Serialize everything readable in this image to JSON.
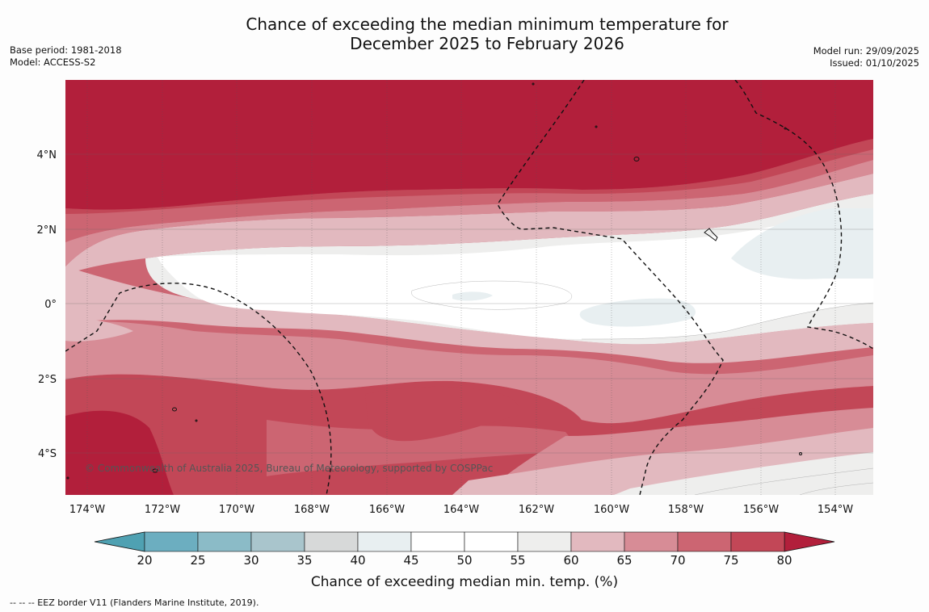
{
  "title": {
    "line1": "Chance of exceeding the median minimum temperature for",
    "line2": "December 2025 to February 2026"
  },
  "meta_left": {
    "base_period": "Base period: 1981-2018",
    "model": "Model: ACCESS-S2"
  },
  "meta_right": {
    "model_run": "Model run: 29/09/2025",
    "issued": "Issued: 01/10/2025"
  },
  "map": {
    "lat_labels": [
      "4°N",
      "2°N",
      "0°",
      "2°S",
      "4°S"
    ],
    "lon_labels": [
      "174°W",
      "172°W",
      "170°W",
      "168°W",
      "166°W",
      "164°W",
      "162°W",
      "160°W",
      "158°W",
      "156°W",
      "154°W"
    ],
    "copyright": "© Commonwealth of Australia 2025, Bureau of Meteorology, supported by COSPPac",
    "colors": {
      "c80": "#b21f3b",
      "c75": "#c24757",
      "c70": "#cc6572",
      "c65": "#d78c96",
      "c60": "#e2b9bf",
      "c55": "#eeeeed",
      "c50": "#ffffff",
      "c40": "#e8eff1"
    }
  },
  "colorbar": {
    "title": "Chance of exceeding median min. temp. (%)",
    "ticks": [
      "20",
      "25",
      "30",
      "35",
      "40",
      "45",
      "50",
      "55",
      "60",
      "65",
      "70",
      "75",
      "80"
    ],
    "bins": [
      {
        "range": "20-25",
        "color": "#6caec0"
      },
      {
        "range": "25-30",
        "color": "#8bbbc7"
      },
      {
        "range": "30-35",
        "color": "#a9c5cc"
      },
      {
        "range": "35-40",
        "color": "#d7d9d9"
      },
      {
        "range": "40-45",
        "color": "#e8eff1"
      },
      {
        "range": "45-50",
        "color": "#ffffff"
      },
      {
        "range": "50-55",
        "color": "#ffffff"
      },
      {
        "range": "55-60",
        "color": "#eeeeed"
      },
      {
        "range": "60-65",
        "color": "#e2b9bf"
      },
      {
        "range": "65-70",
        "color": "#d78c96"
      },
      {
        "range": "70-75",
        "color": "#cc6572"
      },
      {
        "range": "75-80",
        "color": "#c24757"
      }
    ],
    "low_extend_color": "#4fa1b2",
    "high_extend_color": "#b21f3b"
  },
  "footnote": "--  --  -- EEZ border V11 (Flanders Marine Institute, 2019)."
}
